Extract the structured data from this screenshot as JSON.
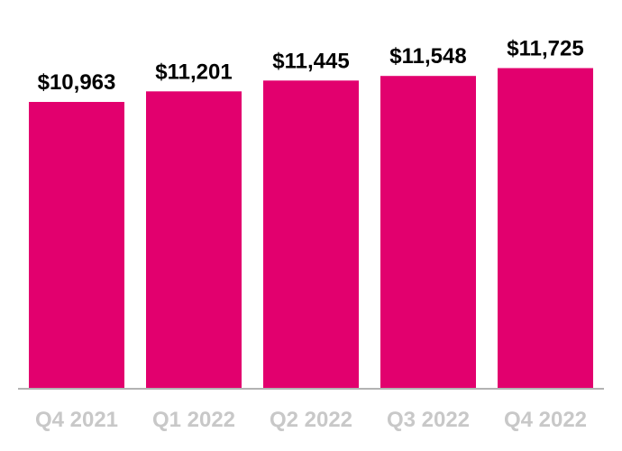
{
  "chart_data": {
    "type": "bar",
    "categories": [
      "Q4 2021",
      "Q1 2022",
      "Q2 2022",
      "Q3 2022",
      "Q4 2022"
    ],
    "values": [
      10963,
      11201,
      11445,
      11548,
      11725
    ],
    "data_labels": [
      "$10,963",
      "$11,201",
      "$11,445",
      "$11,548",
      "$11,725"
    ],
    "title": "",
    "xlabel": "",
    "ylabel": "",
    "y_axis_visible": false,
    "grid": false,
    "legend": "none",
    "colors": {
      "bar": "#e2006e",
      "axis": "#b3b3b3",
      "tick_label": "#c8c8c8",
      "data_label": "#000000"
    }
  }
}
